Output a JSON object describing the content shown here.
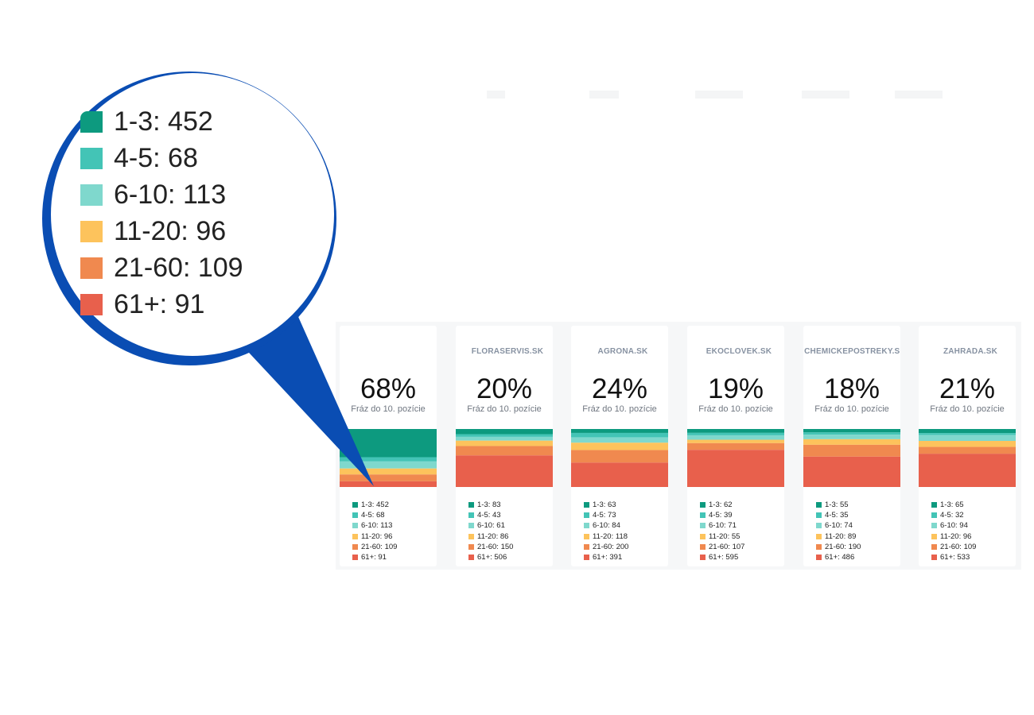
{
  "colors": {
    "bands": [
      "#0d9a7f",
      "#43c4b6",
      "#7fd8cd",
      "#fdc35c",
      "#f0894f",
      "#e8604c"
    ],
    "callout": "#0a4db3"
  },
  "legend_labels": [
    "1-3",
    "4-5",
    "6-10",
    "11-20",
    "21-60",
    "61+"
  ],
  "subtitle": "Fráz do 10. pozície",
  "cards": [
    {
      "title": "",
      "pct": "68%",
      "values": [
        452,
        68,
        113,
        96,
        109,
        91
      ]
    },
    {
      "title": "FLORASERVIS.SK",
      "pct": "20%",
      "values": [
        83,
        43,
        61,
        86,
        150,
        506
      ]
    },
    {
      "title": "AGRONA.SK",
      "pct": "24%",
      "values": [
        63,
        73,
        84,
        118,
        200,
        391
      ]
    },
    {
      "title": "EKOCLOVEK.SK",
      "pct": "19%",
      "values": [
        62,
        39,
        71,
        55,
        107,
        595
      ]
    },
    {
      "title": "CHEMICKEPOSTREKY.SK",
      "pct": "18%",
      "values": [
        55,
        35,
        74,
        89,
        190,
        486
      ]
    },
    {
      "title": "ZAHRADA.SK",
      "pct": "21%",
      "values": [
        65,
        32,
        94,
        96,
        109,
        533
      ]
    }
  ],
  "zoom_legend": [
    "1-3: 452",
    "4-5: 68",
    "6-10: 113",
    "11-20: 96",
    "21-60: 109",
    "61+: 91"
  ],
  "chart_data": {
    "type": "bar",
    "categories": [
      "",
      "FLORASERVIS.SK",
      "AGRONA.SK",
      "EKOCLOVEK.SK",
      "CHEMICKEPOSTREKY.SK",
      "ZAHRADA.SK"
    ],
    "series": [
      {
        "name": "1-3",
        "values": [
          452,
          83,
          63,
          62,
          55,
          65
        ]
      },
      {
        "name": "4-5",
        "values": [
          68,
          43,
          73,
          39,
          35,
          32
        ]
      },
      {
        "name": "6-10",
        "values": [
          113,
          61,
          84,
          71,
          74,
          94
        ]
      },
      {
        "name": "11-20",
        "values": [
          96,
          86,
          118,
          55,
          89,
          96
        ]
      },
      {
        "name": "21-60",
        "values": [
          109,
          150,
          200,
          107,
          190,
          109
        ]
      },
      {
        "name": "61+",
        "values": [
          91,
          506,
          391,
          595,
          486,
          533
        ]
      }
    ],
    "stacked": true,
    "data_labels": [
      "68%",
      "20%",
      "24%",
      "19%",
      "18%",
      "21%"
    ],
    "legend": "below-each-bar"
  }
}
